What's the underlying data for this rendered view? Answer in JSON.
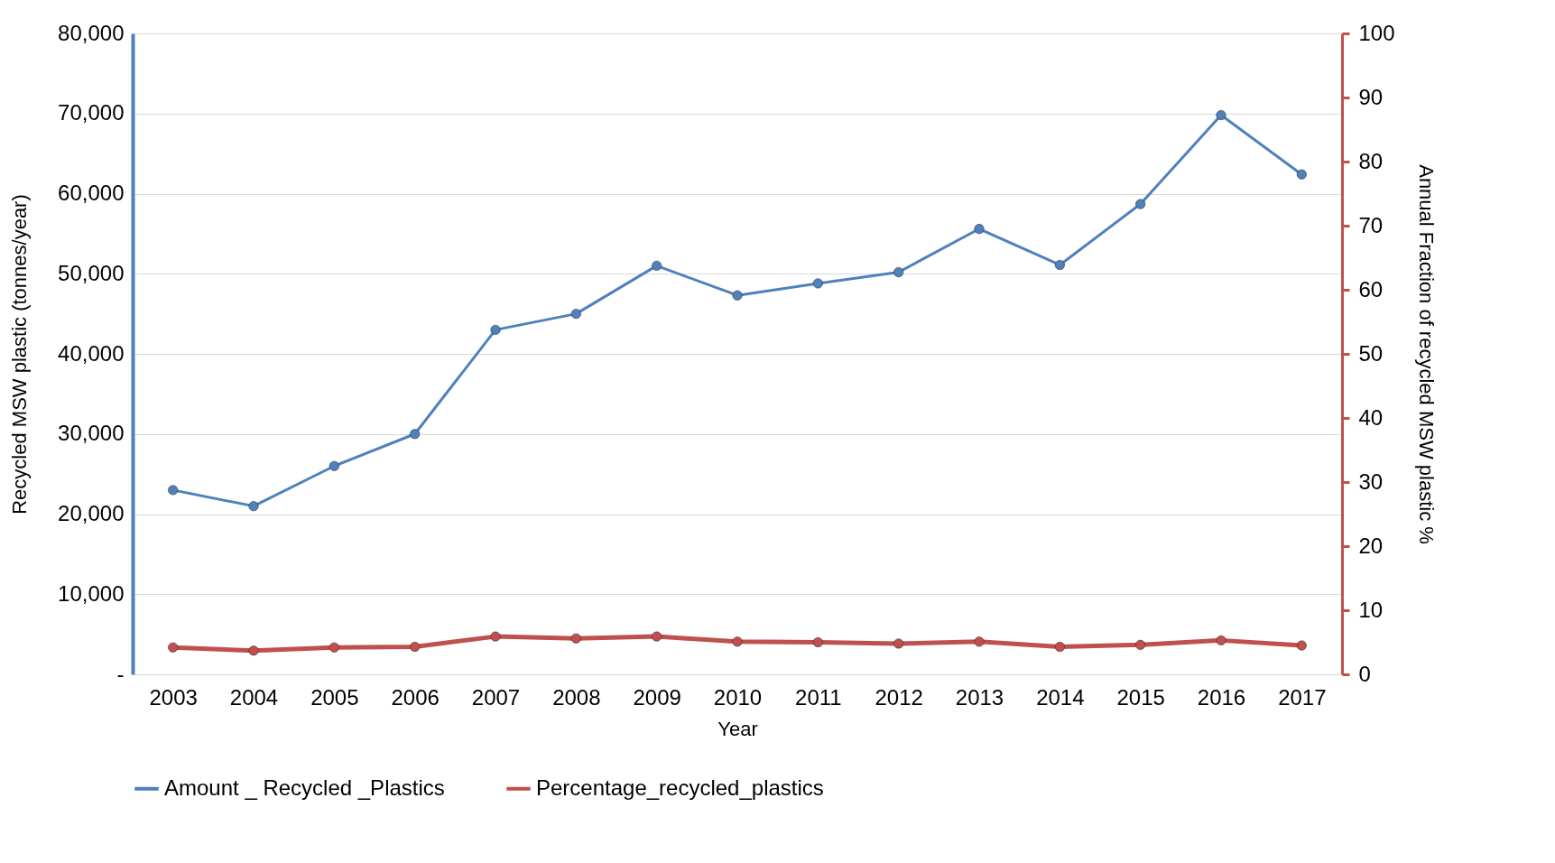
{
  "chart_data": {
    "type": "line",
    "xlabel": "Year",
    "ylabel": "Recycled MSW plastic (tonnes/year)",
    "y2label": "Annual Fraction of recycled MSW plastic %",
    "categories": [
      "2003",
      "2004",
      "2005",
      "2006",
      "2007",
      "2008",
      "2009",
      "2010",
      "2011",
      "2012",
      "2013",
      "2014",
      "2015",
      "2016",
      "2017"
    ],
    "series": [
      {
        "name": "Amount _ Recycled _Plastics",
        "color": "#4f81bd",
        "values": [
          23000,
          21000,
          26000,
          30000,
          43000,
          45000,
          51000,
          47300,
          48800,
          50200,
          55600,
          51100,
          58700,
          69800,
          62400
        ]
      },
      {
        "name": "Percentage_recycled_plastics",
        "color": "#c0504d",
        "axis": "y2",
        "values": [
          4.2,
          3.7,
          4.2,
          4.3,
          5.9,
          5.6,
          5.9,
          5.1,
          5.0,
          4.8,
          5.1,
          4.3,
          4.6,
          5.3,
          4.5
        ]
      }
    ],
    "ylim": [
      0,
      80000
    ],
    "yticks": [
      {
        "value": 0,
        "label": "-"
      },
      {
        "value": 10000,
        "label": "10,000"
      },
      {
        "value": 20000,
        "label": "20,000"
      },
      {
        "value": 30000,
        "label": "30,000"
      },
      {
        "value": 40000,
        "label": "40,000"
      },
      {
        "value": 50000,
        "label": "50,000"
      },
      {
        "value": 60000,
        "label": "60,000"
      },
      {
        "value": 70000,
        "label": "70,000"
      },
      {
        "value": 80000,
        "label": "80,000"
      }
    ],
    "y2lim": [
      0,
      100
    ],
    "y2ticks": [
      0,
      10,
      20,
      30,
      40,
      50,
      60,
      70,
      80,
      90,
      100
    ],
    "grid": "y",
    "legend": "bottom",
    "marker": "circle",
    "line_style": "solid"
  }
}
